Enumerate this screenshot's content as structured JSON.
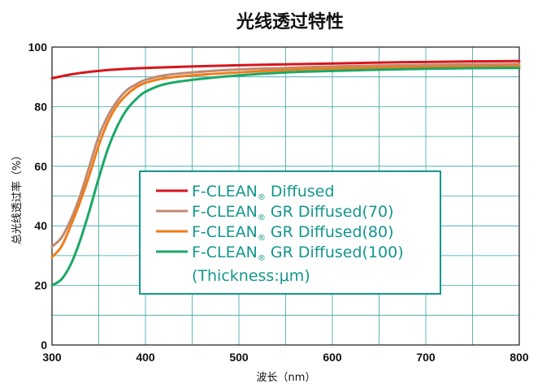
{
  "chart_data": {
    "type": "line",
    "title": "光线透过特性",
    "xlabel": "波长（nm）",
    "ylabel": "总光线透过率（%）",
    "xlim": [
      300,
      800
    ],
    "ylim": [
      0,
      100
    ],
    "xticks": [
      "300",
      "400",
      "500",
      "600",
      "700",
      "800"
    ],
    "yticks": [
      "0",
      "20",
      "40",
      "60",
      "80",
      "100"
    ],
    "grid": true,
    "legend_position": "center",
    "legend_note": "(Thickness:μm)",
    "series": [
      {
        "name": "F-CLEAN Diffused",
        "legend_main": "F-CLEAN",
        "legend_suffix": "Diffused",
        "color": "#d7151c",
        "x": [
          300,
          310,
          320,
          330,
          340,
          350,
          360,
          370,
          380,
          400,
          450,
          500,
          550,
          600,
          650,
          700,
          750,
          800
        ],
        "y": [
          89.5,
          90.2,
          90.8,
          91.3,
          91.7,
          92.0,
          92.3,
          92.5,
          92.7,
          93.0,
          93.5,
          93.9,
          94.2,
          94.5,
          94.8,
          95.0,
          95.2,
          95.3
        ]
      },
      {
        "name": "F-CLEAN GR Diffused(70)",
        "legend_main": "F-CLEAN",
        "legend_suffix": "GR Diffused(70)",
        "color": "#c08a72",
        "x": [
          300,
          310,
          320,
          330,
          340,
          350,
          360,
          370,
          380,
          390,
          400,
          420,
          450,
          500,
          550,
          600,
          650,
          700,
          750,
          800
        ],
        "y": [
          33,
          36,
          42,
          50,
          60,
          70,
          77,
          82,
          85.5,
          87.5,
          89,
          90.5,
          91.5,
          92.5,
          93,
          93.5,
          93.8,
          94,
          94.2,
          94.3
        ]
      },
      {
        "name": "F-CLEAN GR Diffused(80)",
        "legend_main": "F-CLEAN",
        "legend_suffix": "GR Diffused(80)",
        "color": "#ef7d1a",
        "x": [
          300,
          310,
          320,
          330,
          340,
          350,
          360,
          370,
          380,
          390,
          400,
          420,
          450,
          500,
          550,
          600,
          650,
          700,
          750,
          800
        ],
        "y": [
          29.5,
          33,
          40,
          48,
          57,
          67,
          75,
          80.5,
          84,
          86.5,
          88,
          89.5,
          90.5,
          91.5,
          92.3,
          92.8,
          93.1,
          93.3,
          93.5,
          93.6
        ]
      },
      {
        "name": "F-CLEAN GR Diffused(100)",
        "legend_main": "F-CLEAN",
        "legend_suffix": "GR Diffused(100)",
        "color": "#1aa866",
        "x": [
          300,
          310,
          320,
          330,
          340,
          350,
          360,
          370,
          380,
          390,
          400,
          420,
          450,
          500,
          550,
          600,
          650,
          700,
          750,
          800
        ],
        "y": [
          20,
          22,
          27,
          35,
          45,
          56,
          66,
          73.5,
          79,
          82.5,
          85,
          87.5,
          89,
          90.5,
          91.5,
          92,
          92.4,
          92.7,
          92.9,
          93
        ]
      }
    ]
  }
}
